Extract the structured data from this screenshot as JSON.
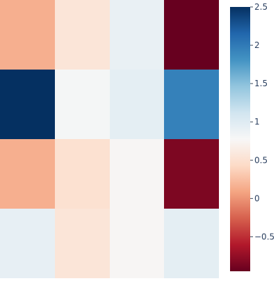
{
  "chart_data": {
    "type": "heatmap",
    "rows": 4,
    "cols": 4,
    "values": [
      [
        0.15,
        0.55,
        0.9,
        -0.95
      ],
      [
        2.5,
        0.8,
        0.95,
        1.95
      ],
      [
        0.15,
        0.5,
        0.75,
        -0.85
      ],
      [
        0.92,
        0.55,
        0.75,
        0.95
      ]
    ],
    "colorbar": {
      "vmin": -0.95,
      "vmax": 2.5,
      "ticks": [
        {
          "value": 2.5,
          "label": "2.5"
        },
        {
          "value": 2.0,
          "label": "2"
        },
        {
          "value": 1.5,
          "label": "1.5"
        },
        {
          "value": 1.0,
          "label": "1"
        },
        {
          "value": 0.5,
          "label": "0.5"
        },
        {
          "value": 0.0,
          "label": "0"
        },
        {
          "value": -0.5,
          "label": "−0.5"
        }
      ]
    },
    "colormap": "RdBu",
    "colorscale": [
      {
        "t": 0.0,
        "color": "#67001f"
      },
      {
        "t": 0.1,
        "color": "#b2182b"
      },
      {
        "t": 0.2,
        "color": "#d6604d"
      },
      {
        "t": 0.3,
        "color": "#f4a582"
      },
      {
        "t": 0.4,
        "color": "#fddbc7"
      },
      {
        "t": 0.5,
        "color": "#f7f7f7"
      },
      {
        "t": 0.6,
        "color": "#d1e5f0"
      },
      {
        "t": 0.7,
        "color": "#92c5de"
      },
      {
        "t": 0.8,
        "color": "#4393c3"
      },
      {
        "t": 0.9,
        "color": "#2166ac"
      },
      {
        "t": 1.0,
        "color": "#053061"
      }
    ],
    "title": "",
    "xlabel": "",
    "ylabel": "",
    "grid": false
  }
}
